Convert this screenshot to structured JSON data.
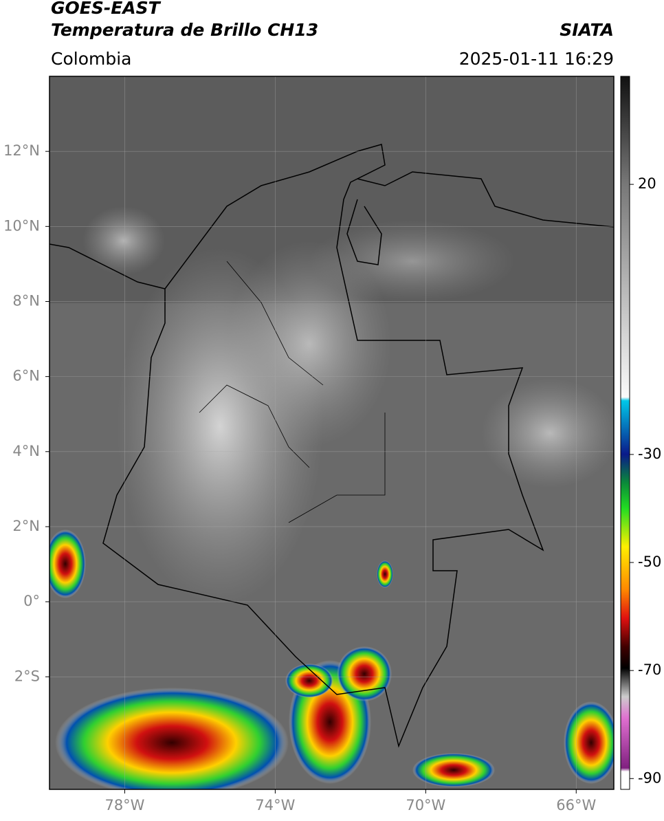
{
  "header": {
    "satellite": "GOES-EAST",
    "product": "Temperatura de Brillo CH13",
    "source": "SIATA",
    "region": "Colombia",
    "timestamp": "2025-01-11 16:29"
  },
  "map": {
    "xlim": [
      -80,
      -65
    ],
    "ylim": [
      -5,
      14
    ],
    "xticks": [
      {
        "value": -78,
        "label": "78°W"
      },
      {
        "value": -74,
        "label": "74°W"
      },
      {
        "value": -70,
        "label": "70°W"
      },
      {
        "value": -66,
        "label": "66°W"
      }
    ],
    "yticks": [
      {
        "value": 12,
        "label": "12°N"
      },
      {
        "value": 10,
        "label": "10°N"
      },
      {
        "value": 8,
        "label": "8°N"
      },
      {
        "value": 6,
        "label": "6°N"
      },
      {
        "value": 4,
        "label": "4°N"
      },
      {
        "value": 2,
        "label": "2°N"
      },
      {
        "value": 0,
        "label": "0°"
      },
      {
        "value": -2,
        "label": "2°S"
      }
    ],
    "grid": true
  },
  "colorbar": {
    "range": [
      -92,
      40
    ],
    "ticks": [
      20,
      -30,
      -50,
      -70,
      -90
    ]
  }
}
